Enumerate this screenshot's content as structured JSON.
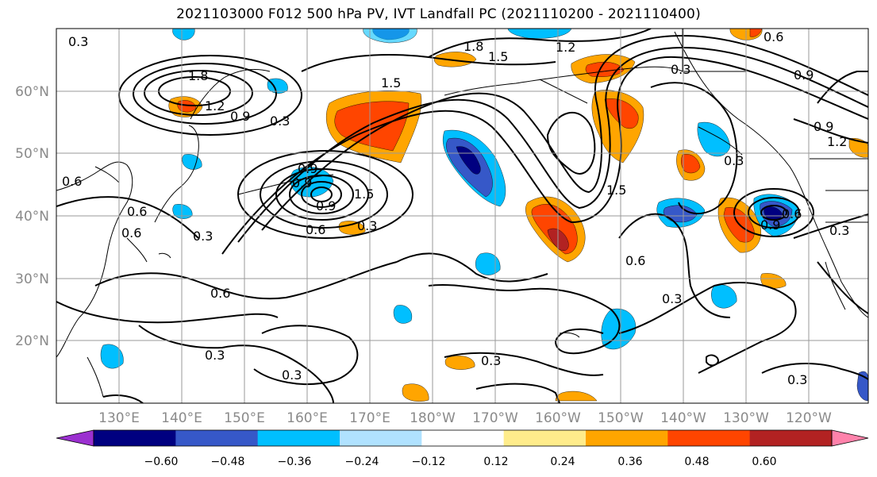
{
  "title": "2021103000 F012 500 hPa PV, IVT Landfall PC (2021110200 - 2021110400)",
  "lat_labels": [
    "60°N",
    "50°N",
    "40°N",
    "30°N",
    "20°N"
  ],
  "lon_labels": [
    "130°E",
    "140°E",
    "150°E",
    "160°E",
    "170°E",
    "180°W",
    "170°W",
    "160°W",
    "150°W",
    "140°W",
    "130°W",
    "120°W"
  ],
  "contour_labels": [
    "0.3",
    "1.8",
    "1.5",
    "1.2",
    "0.6",
    "0.9",
    "0.3",
    "1.8",
    "1.2",
    "0.9",
    "0.3",
    "1.5",
    "0.9",
    "0.6",
    "1.5",
    "0.3",
    "0.6",
    "0.3",
    "0.6",
    "0.9",
    "0.6",
    "0.3",
    "0.6",
    "0.3",
    "0.3",
    "0.3",
    "0.6",
    "0.3",
    "0.9",
    "1.2",
    "0.9",
    "1.5",
    "0.3",
    "0.3",
    "0.9",
    "0.6"
  ],
  "colorbar": {
    "ticks": [
      "−0.60",
      "−0.48",
      "−0.36",
      "−0.24",
      "−0.12",
      "0.12",
      "0.24",
      "0.36",
      "0.48",
      "0.60"
    ],
    "colors": [
      "#9b30d0",
      "#000080",
      "#3658c8",
      "#00bfff",
      "#b0e2ff",
      "#ffffff",
      "#ffec8b",
      "#ffa500",
      "#ff4500",
      "#b22222",
      "#ff82ab"
    ]
  }
}
